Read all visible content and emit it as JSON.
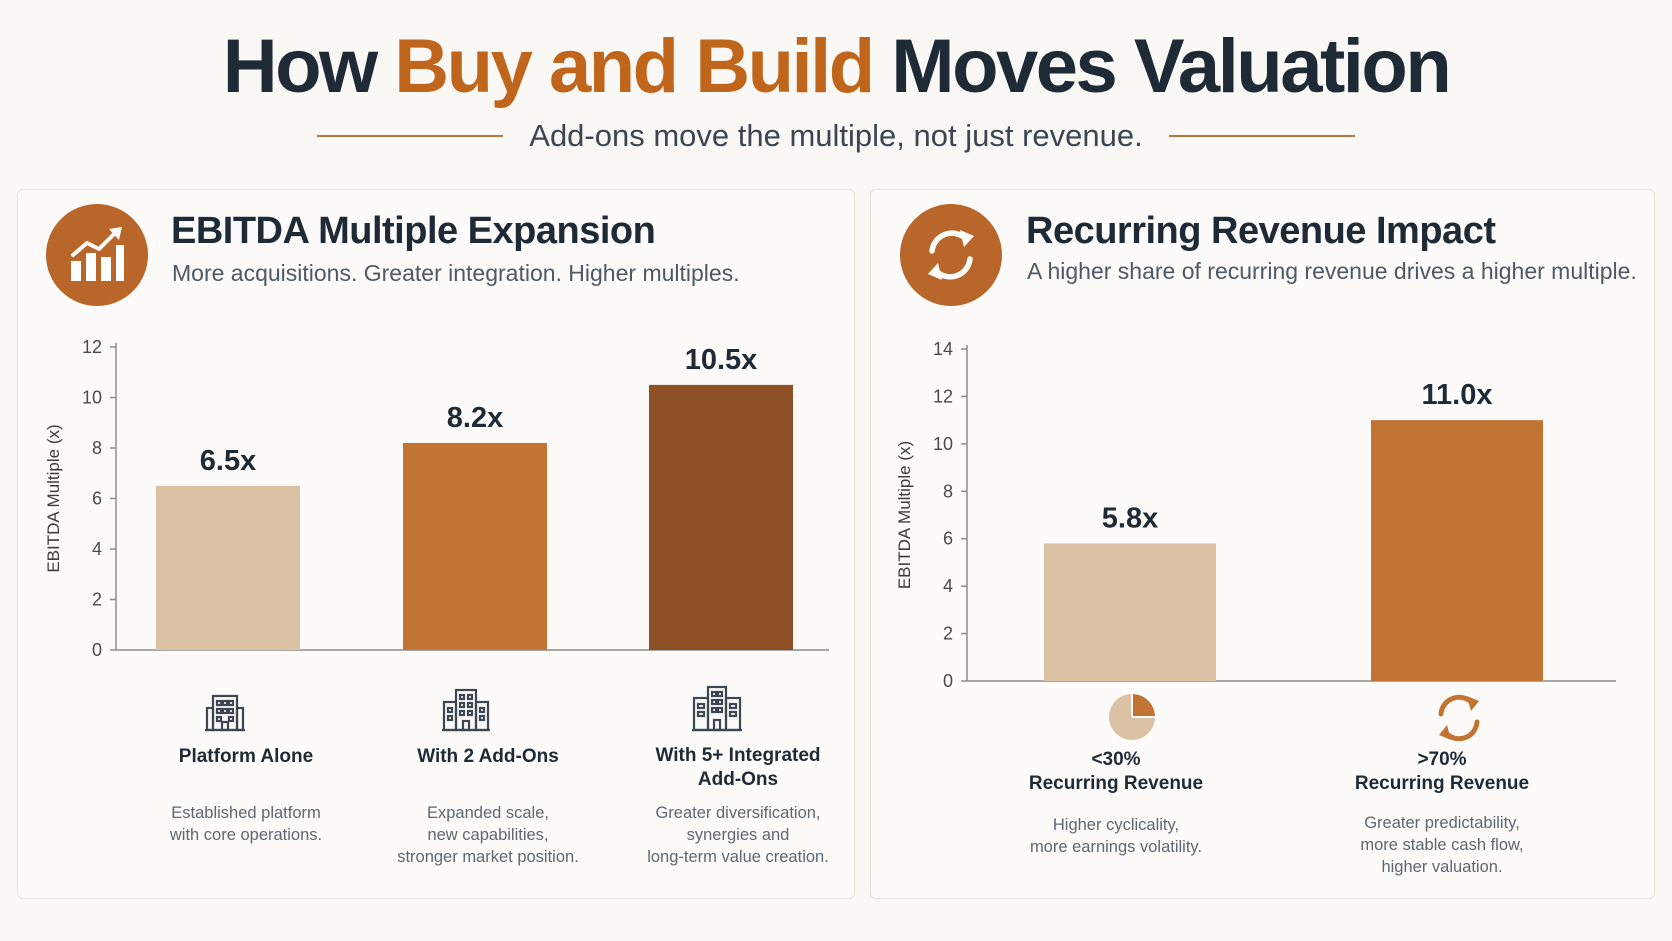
{
  "header": {
    "title_part1": "How ",
    "title_accent": "Buy and Build",
    "title_part2": " Moves Valuation",
    "subtitle": "Add-ons move the multiple, not just revenue."
  },
  "colors": {
    "accent": "#c0661c",
    "navy": "#1e2a36",
    "bar_light": "#dcc2a4",
    "bar_mid": "#c27433",
    "bar_dark": "#8f5126"
  },
  "left_panel": {
    "title": "EBITDA Multiple Expansion",
    "subtitle": "More acquisitions. Greater integration. Higher multiples.",
    "icon": "growth-chart-icon",
    "categories": [
      {
        "label_lines": [
          "Platform Alone"
        ],
        "desc_lines": [
          "Established platform",
          "with core operations."
        ],
        "icon": "building-icon"
      },
      {
        "label_lines": [
          "With 2 Add-Ons"
        ],
        "desc_lines": [
          "Expanded scale,",
          "new capabilities,",
          "stronger market position."
        ],
        "icon": "buildings-icon"
      },
      {
        "label_lines": [
          "With 5+ Integrated",
          "Add-Ons"
        ],
        "desc_lines": [
          "Greater diversification,",
          "synergies and",
          "long-term value creation."
        ],
        "icon": "city-icon"
      }
    ]
  },
  "right_panel": {
    "title": "Recurring Revenue Impact",
    "subtitle": "A higher share of recurring revenue drives a higher multiple.",
    "icon": "recurring-cycle-icon",
    "categories": [
      {
        "label_lines": [
          "<30%",
          "Recurring Revenue"
        ],
        "desc_lines": [
          "Higher cyclicality,",
          "more earnings volatility."
        ],
        "icon": "pie-chart-icon"
      },
      {
        "label_lines": [
          ">70%",
          "Recurring Revenue"
        ],
        "desc_lines": [
          "Greater predictability,",
          "more stable cash flow,",
          "higher valuation."
        ],
        "icon": "refresh-cycle-icon"
      }
    ]
  },
  "chart_data": [
    {
      "type": "bar",
      "title": "EBITDA Multiple Expansion",
      "categories": [
        "Platform Alone",
        "With 2 Add-Ons",
        "With 5+ Integrated Add-Ons"
      ],
      "values": [
        6.5,
        8.2,
        10.5
      ],
      "value_labels": [
        "6.5x",
        "8.2x",
        "10.5x"
      ],
      "bar_colors": [
        "#dcc2a4",
        "#c27433",
        "#8f5126"
      ],
      "ylabel": "EBITDA Multiple (x)",
      "ylim": [
        0,
        12
      ],
      "yticks": [
        0,
        2,
        4,
        6,
        8,
        10,
        12
      ],
      "grid": false
    },
    {
      "type": "bar",
      "title": "Recurring Revenue Impact",
      "categories": [
        "<30% Recurring Revenue",
        ">70% Recurring Revenue"
      ],
      "values": [
        5.8,
        11.0
      ],
      "value_labels": [
        "5.8x",
        "11.0x"
      ],
      "bar_colors": [
        "#dcc2a4",
        "#c27433"
      ],
      "ylabel": "EBITDA Multiple (x)",
      "ylim": [
        0,
        14
      ],
      "yticks": [
        0,
        2,
        4,
        6,
        8,
        10,
        12,
        14
      ],
      "grid": false
    }
  ]
}
